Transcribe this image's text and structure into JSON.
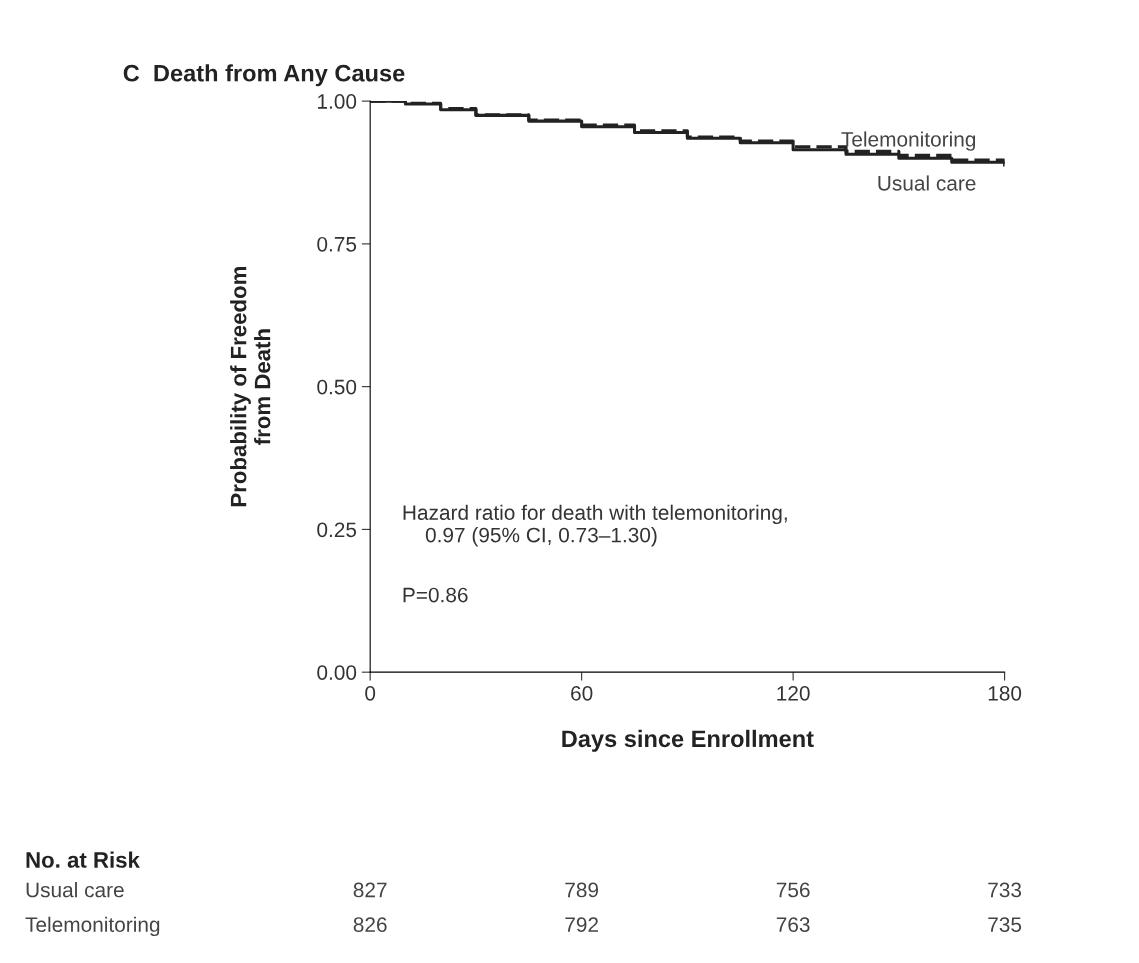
{
  "chart_data": {
    "type": "step",
    "title": "C  Death from Any Cause",
    "xlabel": "Days since Enrollment",
    "ylabel": "Probability of Freedom\nfrom Death",
    "x": [
      0,
      10,
      20,
      30,
      45,
      60,
      75,
      90,
      105,
      120,
      135,
      150,
      165,
      180
    ],
    "series": [
      {
        "name": "Telemonitoring",
        "color": "#222222",
        "line_style": "dashed",
        "values": [
          1.0,
          0.996,
          0.987,
          0.976,
          0.967,
          0.958,
          0.948,
          0.937,
          0.93,
          0.92,
          0.912,
          0.905,
          0.897,
          0.89
        ]
      },
      {
        "name": "Usual care",
        "color": "#222222",
        "line_style": "solid",
        "values": [
          1.0,
          0.995,
          0.985,
          0.975,
          0.965,
          0.955,
          0.945,
          0.935,
          0.927,
          0.915,
          0.907,
          0.9,
          0.893,
          0.888
        ]
      }
    ],
    "xlim": [
      0,
      180
    ],
    "xticks": [
      0,
      60,
      120,
      180
    ],
    "ylim": [
      0,
      1
    ],
    "yticks": [
      {
        "value": 0,
        "label": "0.00"
      },
      {
        "value": 0.25,
        "label": "0.25"
      },
      {
        "value": 0.5,
        "label": "0.50"
      },
      {
        "value": 0.75,
        "label": "0.75"
      },
      {
        "value": 1,
        "label": "1.00"
      }
    ],
    "grid": false,
    "legend": false,
    "annotations": [
      "Hazard ratio for death with telemonitoring,\n    0.97 (95% CI, 0.73–1.30)",
      "P=0.86",
      "No. at Risk",
      "Usual care",
      "827",
      "789",
      "756",
      "733",
      "Telemonitoring",
      "826",
      "792",
      "763",
      "735"
    ]
  }
}
